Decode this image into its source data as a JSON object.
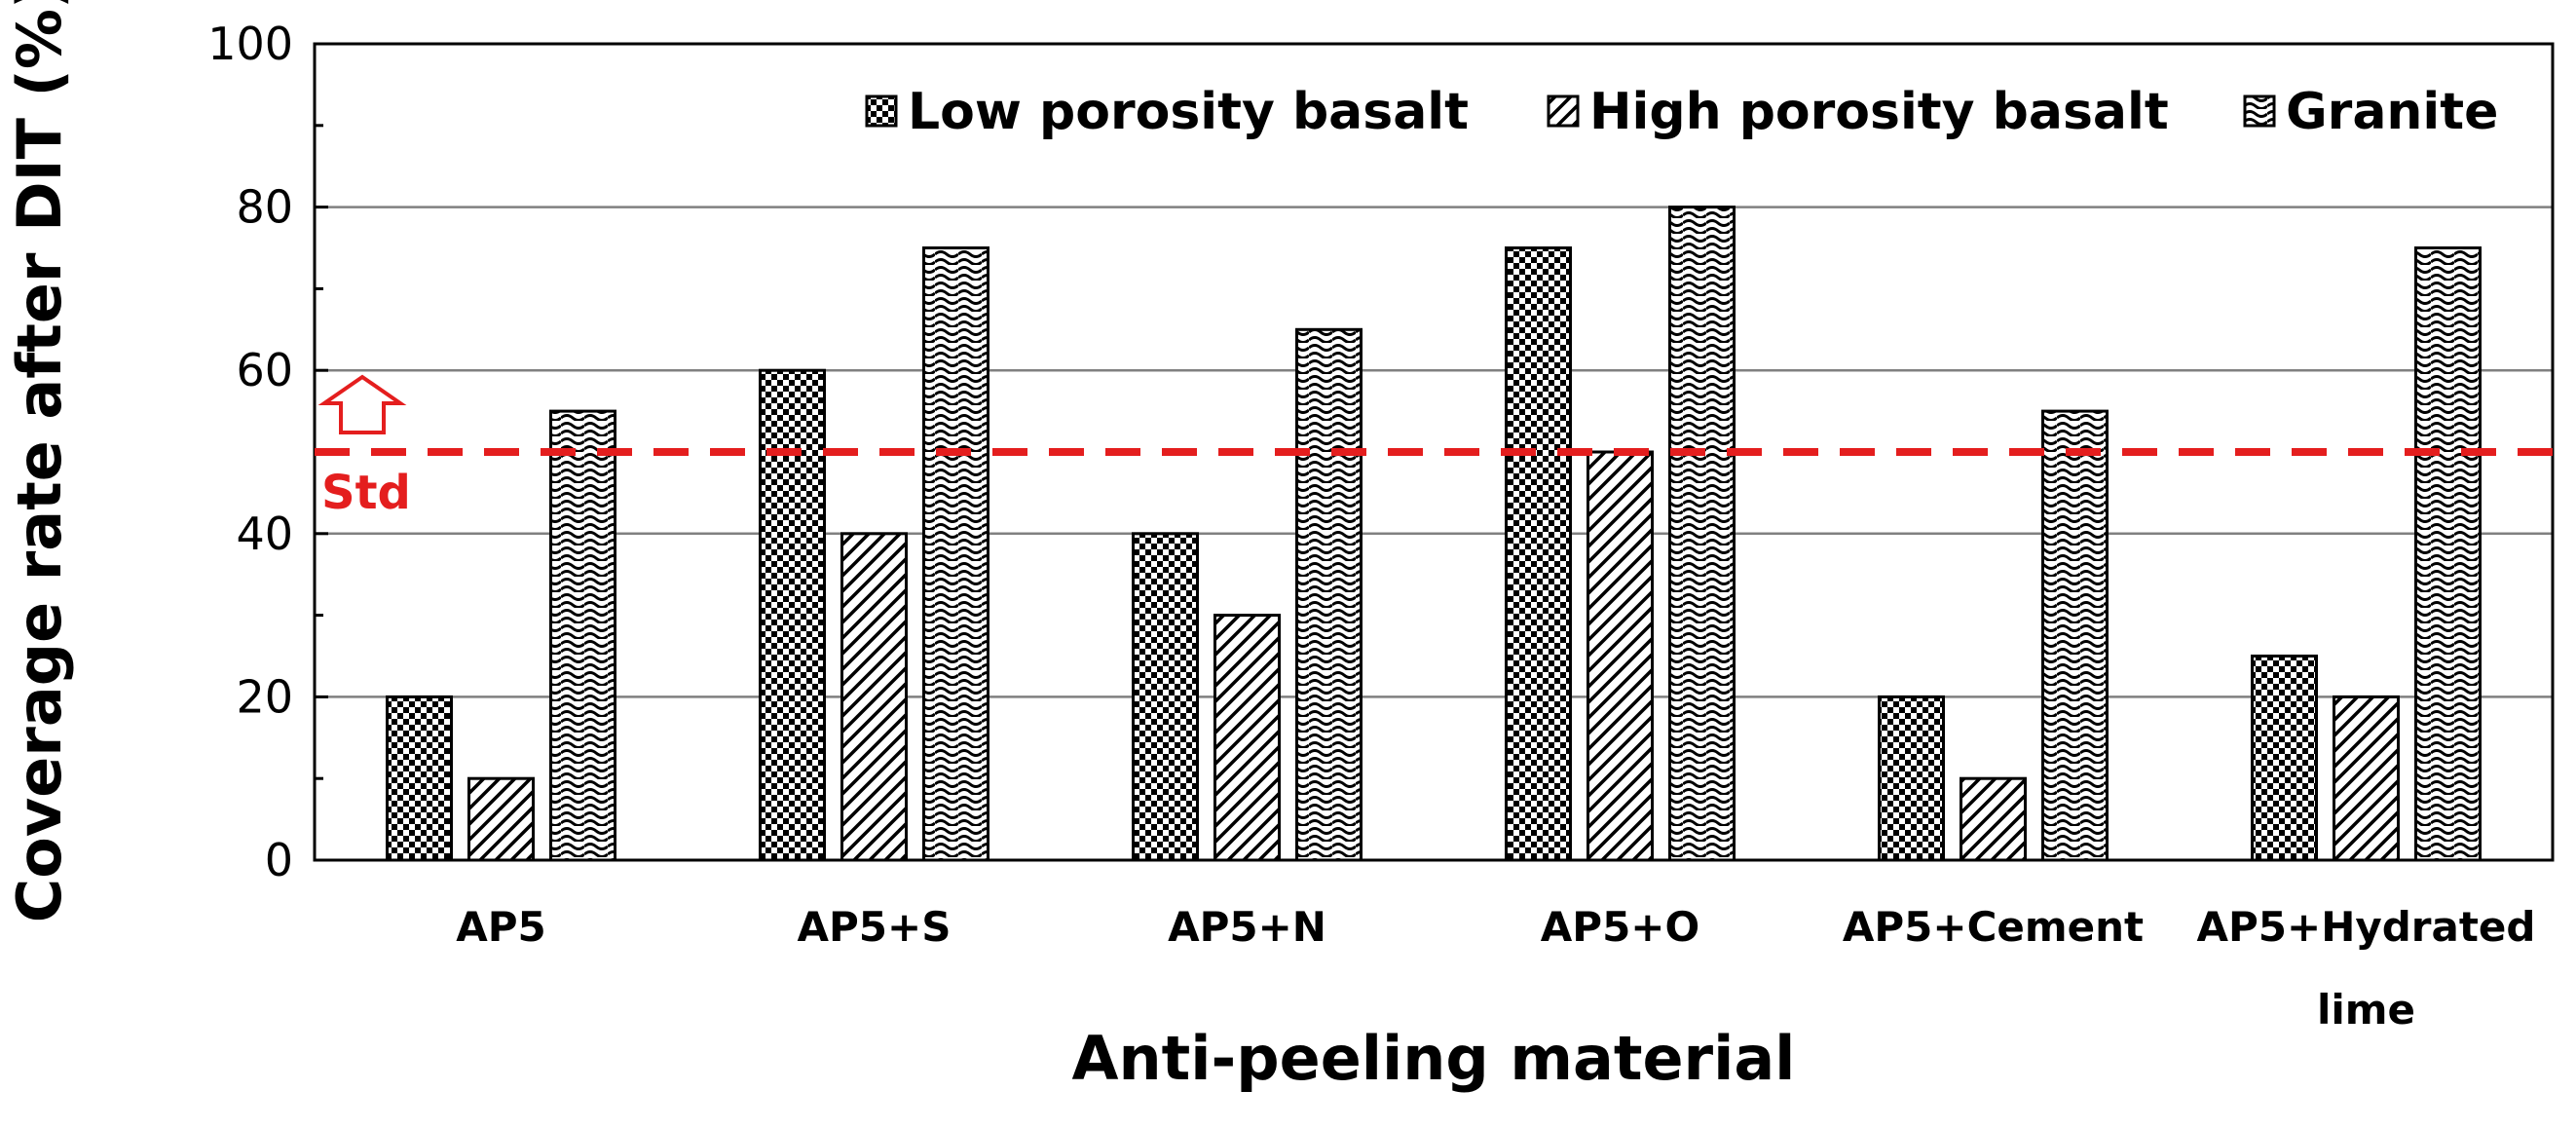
{
  "chart_data": {
    "type": "bar",
    "title": "",
    "xlabel": "Anti-peeling material",
    "ylabel": "Coverage rate after DIT (%)",
    "ylim": [
      0,
      100
    ],
    "yticks": [
      "0",
      "20",
      "40",
      "60",
      "80",
      "100"
    ],
    "grid": true,
    "legend_position": "top-right",
    "categories": [
      [
        "AP5"
      ],
      [
        "AP5+S"
      ],
      [
        "AP5+N"
      ],
      [
        "AP5+O"
      ],
      [
        "AP5+Cement"
      ],
      [
        "AP5+Hydrated",
        "lime"
      ]
    ],
    "series": [
      {
        "name": "Low porosity basalt",
        "pattern": "checker",
        "values": [
          20,
          60,
          40,
          75,
          20,
          25
        ]
      },
      {
        "name": "High porosity basalt",
        "pattern": "diagonal",
        "values": [
          10,
          40,
          30,
          50,
          10,
          20
        ]
      },
      {
        "name": "Granite",
        "pattern": "wave",
        "values": [
          55,
          75,
          65,
          80,
          55,
          75
        ]
      }
    ],
    "reference_line": {
      "value": 50,
      "label": "Std",
      "color": "#e41e1e"
    },
    "colors": {
      "bar_fill": "#ffffff",
      "bar_stroke": "#000000",
      "grid": "#808080",
      "std_line": "#e41e1e"
    }
  }
}
